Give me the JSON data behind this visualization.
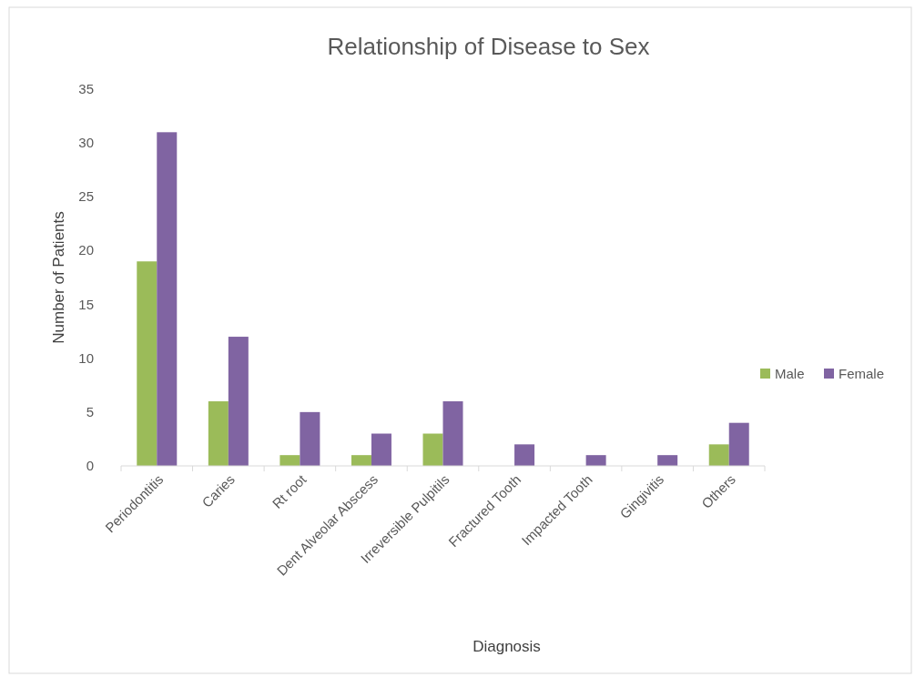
{
  "chart_data": {
    "type": "bar",
    "title": "Relationship of Disease to Sex",
    "xlabel": "Diagnosis",
    "ylabel": "Number of Patients",
    "categories": [
      "Periodontitis",
      "Caries",
      "Rt root",
      "Dent Alveolar Abscess",
      "Irreversible Pulpitils",
      "Fractured Tooth",
      "Impacted Tooth",
      "Gingivitis",
      "Others"
    ],
    "series": [
      {
        "name": "Male",
        "color": "#9bbb59",
        "values": [
          19,
          6,
          1,
          1,
          3,
          0,
          0,
          0,
          2
        ]
      },
      {
        "name": "Female",
        "color": "#8064a2",
        "values": [
          31,
          12,
          5,
          3,
          6,
          2,
          1,
          1,
          4
        ]
      }
    ],
    "ylim": [
      0,
      35
    ],
    "yticks": [
      0,
      5,
      10,
      15,
      20,
      25,
      30,
      35
    ],
    "grid": false,
    "legend": "right"
  }
}
